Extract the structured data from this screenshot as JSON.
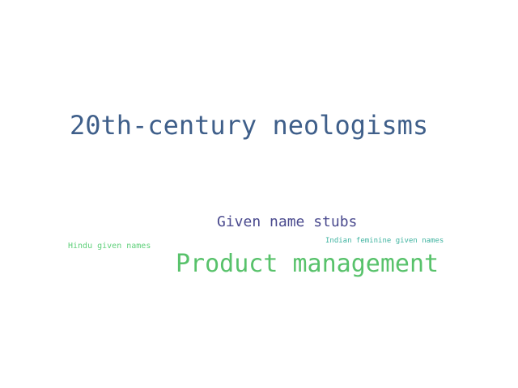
{
  "words": [
    {
      "text": "20th-century neologisms",
      "color": "#3f5f8a"
    },
    {
      "text": "Given name stubs",
      "color": "#4a4a8e"
    },
    {
      "text": "Product management",
      "color": "#58c26b"
    },
    {
      "text": "Hindu given names",
      "color": "#5fd07a"
    },
    {
      "text": "Indian feminine given names",
      "color": "#3fb3a0"
    }
  ]
}
